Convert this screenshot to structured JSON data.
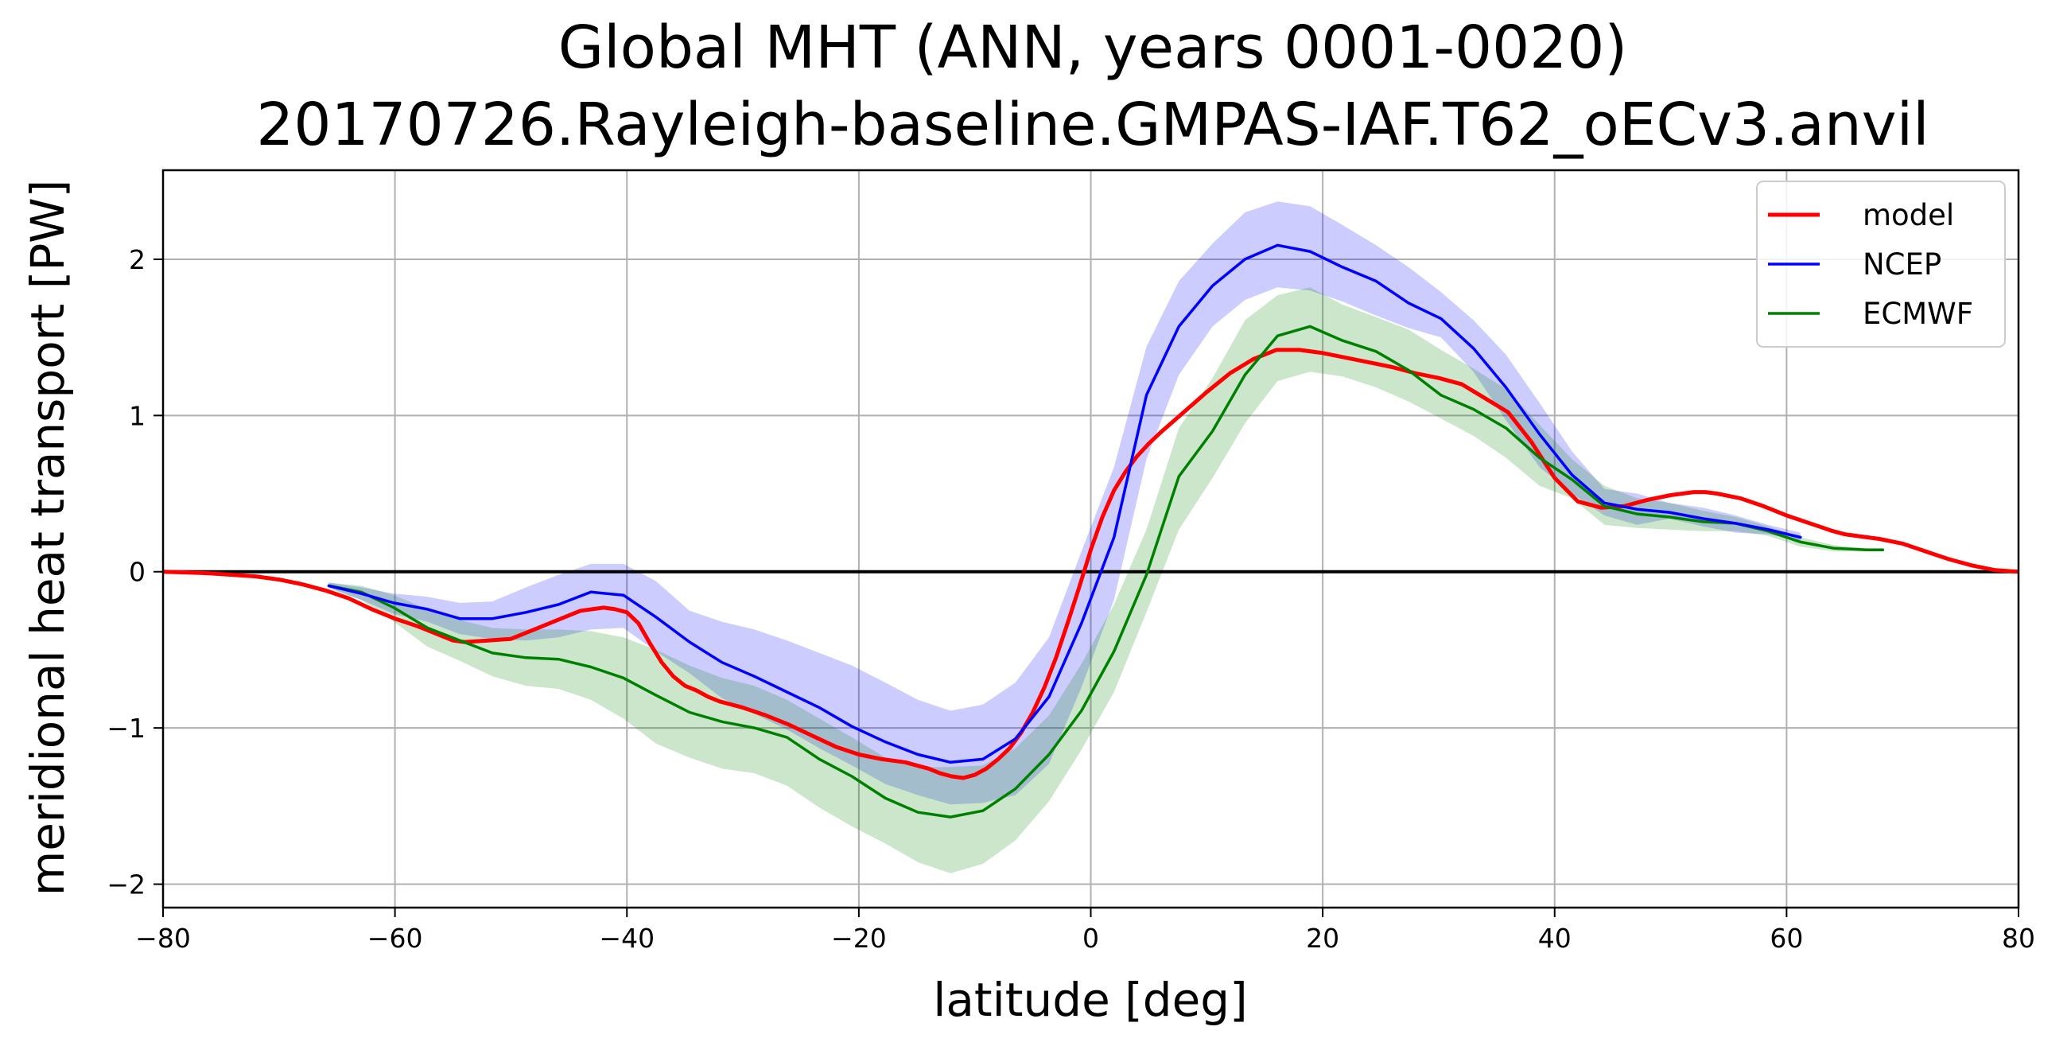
{
  "chart_data": {
    "type": "line",
    "title": "Global MHT (ANN, years 0001-0020)",
    "subtitle": "20170726.Rayleigh-baseline.GMPAS-IAF.T62_oECv3.anvil",
    "xlabel": "latitude [deg]",
    "ylabel": "meridional heat transport [PW]",
    "xlim": [
      -80,
      80
    ],
    "ylim": [
      -2.15,
      2.57
    ],
    "xticks": [
      -80,
      -60,
      -40,
      -20,
      0,
      20,
      40,
      60,
      80
    ],
    "xtick_labels": [
      "−80",
      "−60",
      "−40",
      "−20",
      "0",
      "20",
      "40",
      "60",
      "80"
    ],
    "yticks": [
      -2,
      -1,
      0,
      1,
      2
    ],
    "ytick_labels": [
      "−2",
      "−1",
      "0",
      "1",
      "2"
    ],
    "grid": true,
    "legend_position": "top-right",
    "zero_line": true,
    "series": [
      {
        "name": "model",
        "color": "#ff0000",
        "x": [
          -80,
          -76,
          -72,
          -70,
          -68,
          -66,
          -64,
          -62,
          -60,
          -58,
          -56,
          -55,
          -54,
          -52,
          -50,
          -48,
          -46,
          -44,
          -42,
          -41,
          -40,
          -39,
          -38,
          -37,
          -36,
          -35,
          -34,
          -33,
          -32,
          -30,
          -28,
          -26,
          -24,
          -22,
          -20,
          -18,
          -16,
          -15,
          -14,
          -13,
          -12,
          -11,
          -10,
          -9,
          -8,
          -7,
          -6,
          -5,
          -4,
          -3,
          -2,
          -1,
          0,
          1,
          2,
          3,
          4,
          5,
          6,
          8,
          10,
          12,
          14,
          16,
          18,
          20,
          22,
          24,
          26,
          28,
          30,
          32,
          34,
          36,
          38,
          40,
          42,
          44,
          46,
          48,
          50,
          52,
          53,
          54,
          56,
          58,
          60,
          62,
          64,
          65,
          66,
          68,
          70,
          72,
          74,
          76,
          78,
          80
        ],
        "y": [
          0.0,
          -0.01,
          -0.03,
          -0.05,
          -0.08,
          -0.12,
          -0.17,
          -0.24,
          -0.3,
          -0.35,
          -0.41,
          -0.44,
          -0.45,
          -0.44,
          -0.43,
          -0.37,
          -0.31,
          -0.25,
          -0.23,
          -0.24,
          -0.26,
          -0.33,
          -0.46,
          -0.58,
          -0.67,
          -0.73,
          -0.76,
          -0.8,
          -0.83,
          -0.87,
          -0.92,
          -0.98,
          -1.05,
          -1.12,
          -1.17,
          -1.2,
          -1.22,
          -1.24,
          -1.26,
          -1.29,
          -1.31,
          -1.32,
          -1.3,
          -1.26,
          -1.2,
          -1.13,
          -1.03,
          -0.9,
          -0.74,
          -0.55,
          -0.33,
          -0.1,
          0.14,
          0.35,
          0.52,
          0.64,
          0.74,
          0.82,
          0.89,
          1.02,
          1.15,
          1.27,
          1.36,
          1.42,
          1.42,
          1.4,
          1.37,
          1.34,
          1.31,
          1.27,
          1.24,
          1.2,
          1.11,
          1.02,
          0.83,
          0.6,
          0.45,
          0.41,
          0.42,
          0.46,
          0.49,
          0.51,
          0.51,
          0.5,
          0.47,
          0.42,
          0.36,
          0.31,
          0.26,
          0.24,
          0.23,
          0.21,
          0.18,
          0.13,
          0.08,
          0.04,
          0.01,
          0.0
        ]
      },
      {
        "name": "NCEP",
        "color": "#0000ff",
        "x": [
          -65.7,
          -62.9,
          -60.1,
          -57.2,
          -54.4,
          -51.6,
          -48.7,
          -45.9,
          -43.1,
          -40.3,
          -37.5,
          -34.6,
          -31.8,
          -29,
          -26.2,
          -23.4,
          -20.6,
          -17.7,
          -14.9,
          -12.1,
          -9.3,
          -6.5,
          -3.6,
          -0.8,
          2,
          4.8,
          7.6,
          10.5,
          13.3,
          16.1,
          18.9,
          21.7,
          24.6,
          27.4,
          30.2,
          33,
          35.8,
          38.7,
          41.5,
          44.3,
          47.1,
          49.9,
          52.8,
          55.6,
          58.4,
          61.2
        ],
        "y": [
          -0.09,
          -0.14,
          -0.2,
          -0.24,
          -0.3,
          -0.3,
          -0.26,
          -0.21,
          -0.13,
          -0.15,
          -0.29,
          -0.45,
          -0.58,
          -0.67,
          -0.77,
          -0.87,
          -0.99,
          -1.09,
          -1.17,
          -1.22,
          -1.2,
          -1.07,
          -0.8,
          -0.33,
          0.22,
          1.13,
          1.57,
          1.83,
          2.0,
          2.09,
          2.05,
          1.95,
          1.86,
          1.72,
          1.62,
          1.43,
          1.18,
          0.88,
          0.62,
          0.44,
          0.4,
          0.38,
          0.34,
          0.31,
          0.27,
          0.22
        ]
      },
      {
        "name": "ECMWF",
        "color": "#008000",
        "x": [
          -65.7,
          -62.9,
          -60.1,
          -57.2,
          -54.4,
          -51.6,
          -48.7,
          -45.9,
          -43.1,
          -40.3,
          -37.5,
          -34.6,
          -31.8,
          -29,
          -26.2,
          -23.4,
          -20.6,
          -17.7,
          -14.9,
          -12.1,
          -9.3,
          -6.5,
          -3.6,
          -0.8,
          2,
          4.8,
          7.6,
          10.5,
          13.3,
          16.1,
          18.9,
          21.7,
          24.6,
          27.4,
          30.2,
          33,
          35.8,
          38.7,
          41.5,
          44.3,
          47.1,
          49.9,
          52.8,
          55.6,
          58.4,
          61.2,
          64.1,
          66.9,
          68.3
        ],
        "y": [
          -0.09,
          -0.13,
          -0.23,
          -0.36,
          -0.44,
          -0.52,
          -0.55,
          -0.56,
          -0.61,
          -0.68,
          -0.79,
          -0.9,
          -0.96,
          -1.0,
          -1.06,
          -1.2,
          -1.31,
          -1.45,
          -1.54,
          -1.57,
          -1.53,
          -1.39,
          -1.17,
          -0.89,
          -0.51,
          -0.02,
          0.61,
          0.9,
          1.26,
          1.51,
          1.57,
          1.48,
          1.41,
          1.29,
          1.13,
          1.04,
          0.92,
          0.73,
          0.59,
          0.42,
          0.37,
          0.35,
          0.32,
          0.31,
          0.26,
          0.19,
          0.15,
          0.14,
          0.14
        ]
      }
    ],
    "bands": [
      {
        "series": "NCEP",
        "color": "#0000ff",
        "opacity": 0.2,
        "x": [
          -65.7,
          -62.9,
          -60.1,
          -57.2,
          -54.4,
          -51.6,
          -48.7,
          -45.9,
          -43.1,
          -40.3,
          -37.5,
          -34.6,
          -31.8,
          -29,
          -26.2,
          -23.4,
          -20.6,
          -17.7,
          -14.9,
          -12.1,
          -9.3,
          -6.5,
          -3.6,
          -0.8,
          2,
          4.8,
          7.6,
          10.5,
          13.3,
          16.1,
          18.9,
          21.7,
          24.6,
          27.4,
          30.2,
          33,
          35.8,
          38.7,
          41.5,
          44.3,
          47.1,
          49.9,
          52.8,
          55.6,
          58.4,
          61.2
        ],
        "upper": [
          -0.07,
          -0.1,
          -0.14,
          -0.16,
          -0.2,
          -0.19,
          -0.1,
          -0.02,
          0.05,
          0.05,
          -0.06,
          -0.25,
          -0.32,
          -0.37,
          -0.44,
          -0.52,
          -0.6,
          -0.71,
          -0.82,
          -0.89,
          -0.85,
          -0.71,
          -0.42,
          0.13,
          0.67,
          1.44,
          1.86,
          2.1,
          2.3,
          2.37,
          2.34,
          2.22,
          2.09,
          1.95,
          1.79,
          1.61,
          1.39,
          1.08,
          0.77,
          0.53,
          0.5,
          0.44,
          0.41,
          0.36,
          0.3,
          0.25
        ],
        "lower": [
          -0.1,
          -0.18,
          -0.27,
          -0.32,
          -0.4,
          -0.43,
          -0.44,
          -0.42,
          -0.37,
          -0.36,
          -0.51,
          -0.65,
          -0.81,
          -0.91,
          -1.01,
          -1.13,
          -1.24,
          -1.36,
          -1.43,
          -1.49,
          -1.48,
          -1.43,
          -1.23,
          -0.74,
          -0.18,
          0.72,
          1.26,
          1.57,
          1.74,
          1.82,
          1.8,
          1.73,
          1.64,
          1.56,
          1.5,
          1.28,
          0.97,
          0.67,
          0.5,
          0.36,
          0.3,
          0.34,
          0.29,
          0.25,
          0.24,
          0.2
        ]
      },
      {
        "series": "ECMWF",
        "color": "#008000",
        "opacity": 0.2,
        "x": [
          -65.7,
          -62.9,
          -60.1,
          -57.2,
          -54.4,
          -51.6,
          -48.7,
          -45.9,
          -43.1,
          -40.3,
          -37.5,
          -34.6,
          -31.8,
          -29,
          -26.2,
          -23.4,
          -20.6,
          -17.7,
          -14.9,
          -12.1,
          -9.3,
          -6.5,
          -3.6,
          -0.8,
          2,
          4.8,
          7.6,
          10.5,
          13.3,
          16.1,
          18.9,
          21.7,
          24.6,
          27.4,
          30.2,
          33,
          35.8,
          38.7,
          41.5,
          44.3,
          47.1,
          49.9,
          52.8,
          55.6,
          58.4,
          61.2,
          64.1,
          66.9,
          68.3
        ],
        "upper": [
          -0.07,
          -0.09,
          -0.15,
          -0.24,
          -0.31,
          -0.36,
          -0.37,
          -0.37,
          -0.38,
          -0.42,
          -0.5,
          -0.6,
          -0.68,
          -0.73,
          -0.82,
          -0.94,
          -1.06,
          -1.19,
          -1.25,
          -1.25,
          -1.24,
          -1.13,
          -0.92,
          -0.59,
          -0.21,
          0.27,
          0.92,
          1.24,
          1.61,
          1.77,
          1.82,
          1.71,
          1.63,
          1.55,
          1.42,
          1.3,
          1.17,
          0.94,
          0.72,
          0.55,
          0.47,
          0.44,
          0.39,
          0.35,
          0.29,
          0.22,
          0.17,
          0.15,
          0.15
        ],
        "lower": [
          -0.11,
          -0.18,
          -0.32,
          -0.48,
          -0.57,
          -0.67,
          -0.73,
          -0.75,
          -0.82,
          -0.94,
          -1.1,
          -1.19,
          -1.26,
          -1.29,
          -1.37,
          -1.51,
          -1.63,
          -1.74,
          -1.86,
          -1.93,
          -1.87,
          -1.72,
          -1.47,
          -1.14,
          -0.77,
          -0.26,
          0.27,
          0.6,
          0.95,
          1.22,
          1.28,
          1.25,
          1.18,
          1.09,
          0.98,
          0.87,
          0.73,
          0.55,
          0.47,
          0.3,
          0.28,
          0.27,
          0.26,
          0.26,
          0.23,
          0.16,
          0.13,
          0.13,
          0.13
        ]
      }
    ]
  }
}
